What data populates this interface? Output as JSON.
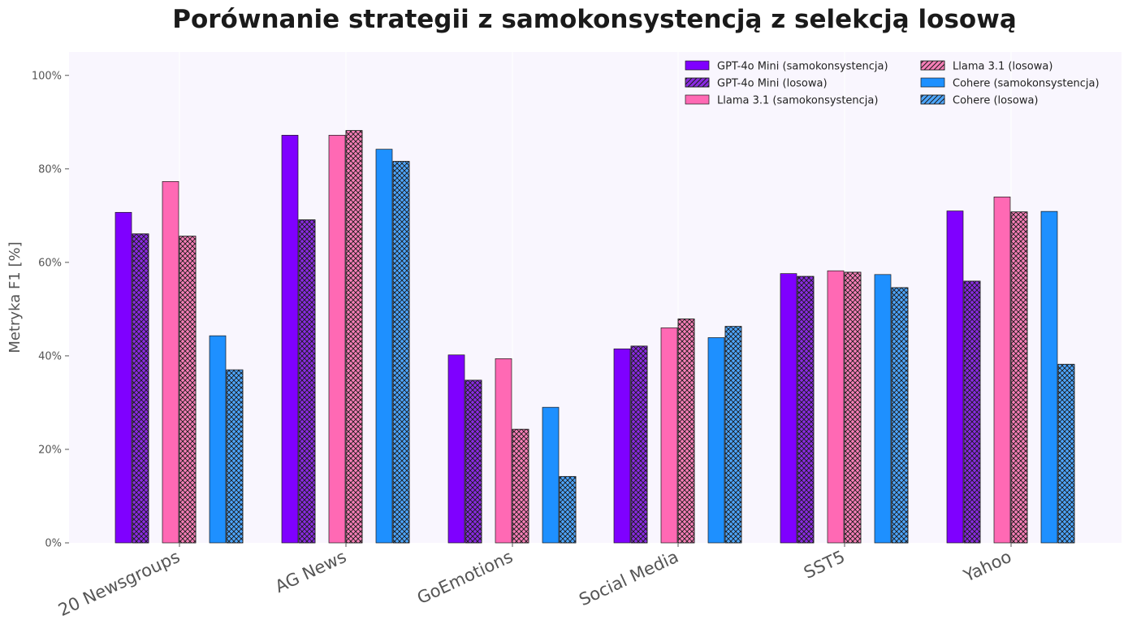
{
  "chart_data": {
    "type": "bar",
    "title": "Porównanie strategii z samokonsystencją z selekcją losową",
    "xlabel": "",
    "ylabel": "Metryka F1 [%]",
    "ylim": [
      0,
      105
    ],
    "yticks": [
      "0%",
      "20%",
      "40%",
      "60%",
      "80%",
      "100%"
    ],
    "grid": "vertical",
    "legend_position": "top-right",
    "categories": [
      "20 Newsgroups",
      "AG News",
      "GoEmotions",
      "Social Media",
      "SST5",
      "Yahoo"
    ],
    "series": [
      {
        "name": "GPT-4o Mini (samokonsystencja)",
        "color": "#7f00ff",
        "hatch": false,
        "values": [
          70.7,
          87.2,
          40.2,
          41.5,
          57.6,
          71.0
        ]
      },
      {
        "name": "GPT-4o Mini (losowa)",
        "color": "#8a2be2",
        "hatch": true,
        "values": [
          66.1,
          69.1,
          34.8,
          42.1,
          57.0,
          56.0
        ]
      },
      {
        "name": "Llama 3.1 (samokonsystencja)",
        "color": "#ff69b4",
        "hatch": false,
        "values": [
          77.3,
          87.2,
          39.4,
          46.0,
          58.2,
          74.0
        ]
      },
      {
        "name": "Llama 3.1 (losowa)",
        "color": "#f77fb8",
        "hatch": true,
        "values": [
          65.6,
          88.2,
          24.3,
          47.9,
          57.9,
          70.8
        ]
      },
      {
        "name": "Cohere (samokonsystencja)",
        "color": "#1e90ff",
        "hatch": false,
        "values": [
          44.3,
          84.2,
          29.0,
          43.9,
          57.4,
          70.9
        ]
      },
      {
        "name": "Cohere (losowa)",
        "color": "#4da6ff",
        "hatch": true,
        "values": [
          37.0,
          81.6,
          14.2,
          46.3,
          54.6,
          38.2
        ]
      }
    ]
  }
}
